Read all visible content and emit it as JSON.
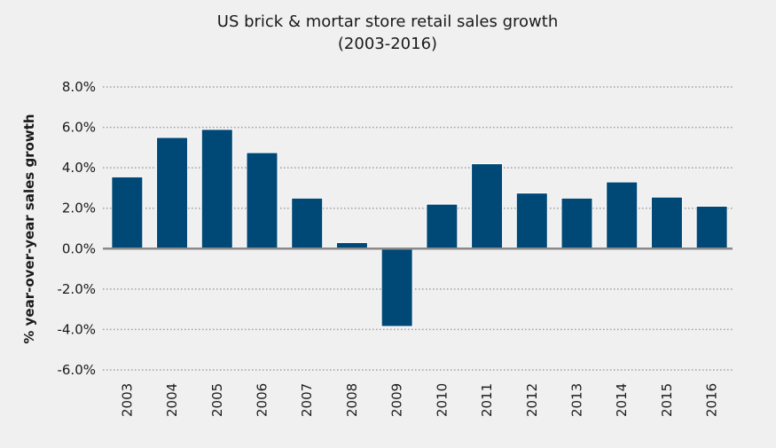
{
  "chart_data": {
    "type": "bar",
    "title": "US brick & mortar store retail sales growth",
    "subtitle": "(2003-2016)",
    "xlabel": "",
    "ylabel": "% year-over-year sales growth",
    "ylim": [
      -6.0,
      8.0
    ],
    "yticks": [
      8.0,
      6.0,
      4.0,
      2.0,
      0.0,
      -2.0,
      -4.0,
      -6.0
    ],
    "ytick_labels": [
      "8.0%",
      "6.0%",
      "4.0%",
      "2.0%",
      "0.0%",
      "-2.0%",
      "-4.0%",
      "-6.0%"
    ],
    "grid": true,
    "grid_style": "dotted",
    "legend": "none",
    "categories": [
      "2003",
      "2004",
      "2005",
      "2006",
      "2007",
      "2008",
      "2009",
      "2010",
      "2011",
      "2012",
      "2013",
      "2014",
      "2015",
      "2016"
    ],
    "values": [
      3.55,
      5.5,
      5.9,
      4.75,
      2.5,
      0.3,
      -3.85,
      2.2,
      4.2,
      2.75,
      2.5,
      3.3,
      2.55,
      2.1
    ],
    "bar_color": "#004876",
    "zero_line_color": "#8a8a8a",
    "grid_color": "#a0a0a0"
  }
}
